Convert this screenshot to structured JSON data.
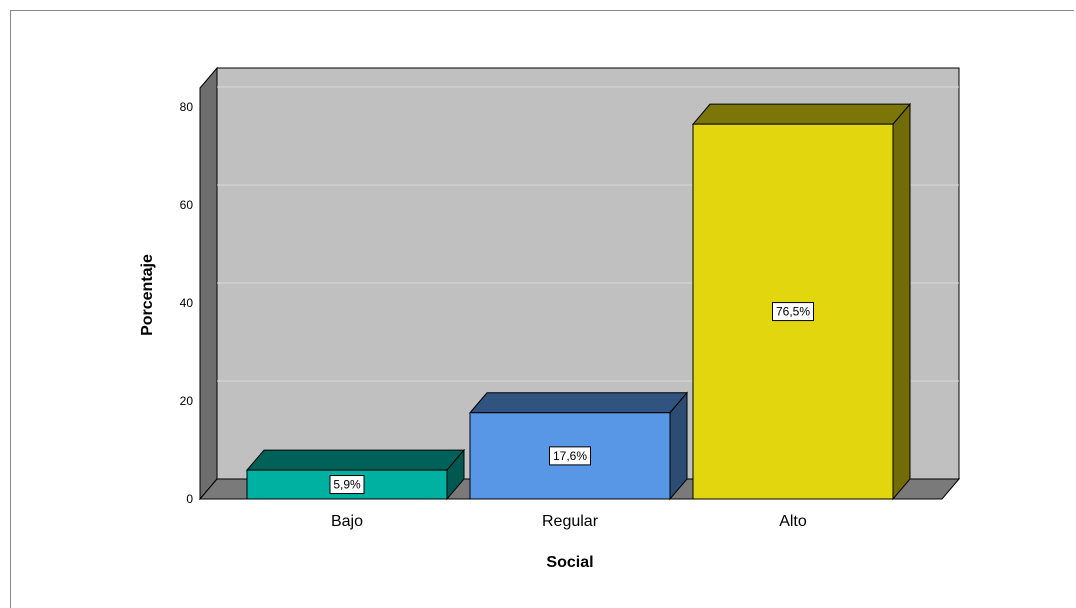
{
  "chart_data": {
    "type": "bar",
    "title": "",
    "xlabel": "Social",
    "ylabel": "Porcentaje",
    "categories": [
      "Bajo",
      "Regular",
      "Alto"
    ],
    "values": [
      5.9,
      17.6,
      76.5
    ],
    "data_labels": [
      "5,9%",
      "17,6%",
      "76,5%"
    ],
    "colors": [
      "#00b0a0",
      "#5897e6",
      "#e2d70e"
    ],
    "ylim": [
      0,
      80
    ],
    "yticks": [
      0,
      20,
      40,
      60,
      80
    ],
    "grid": true,
    "style": "3d"
  }
}
